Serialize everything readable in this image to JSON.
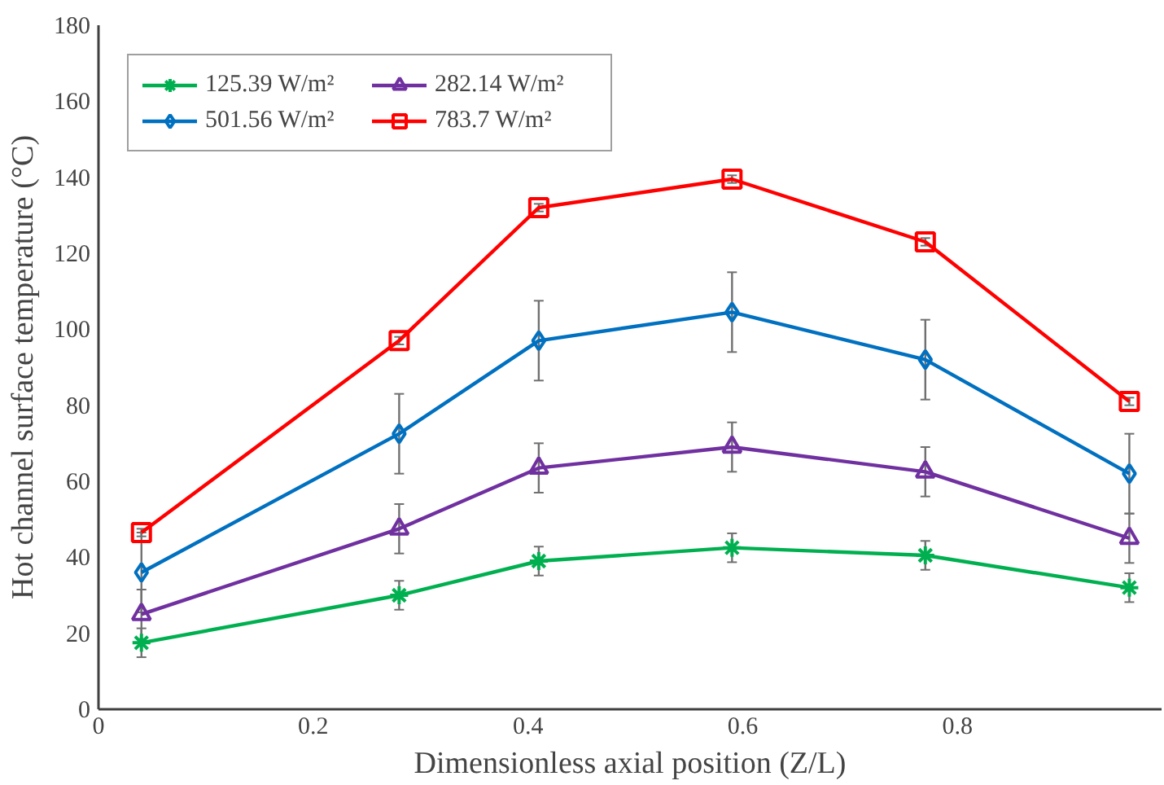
{
  "chart_data": {
    "type": "line",
    "xlabel": "Dimensionless axial position (Z/L)",
    "ylabel": "Hot channel surface temperature (°C)",
    "x": [
      0.04,
      0.28,
      0.41,
      0.59,
      0.77,
      0.96
    ],
    "xlim": [
      0,
      0.99
    ],
    "xticks": [
      0,
      0.2,
      0.4,
      0.6,
      0.8
    ],
    "ylim": [
      0,
      180
    ],
    "yticks": [
      0,
      20,
      40,
      60,
      80,
      100,
      120,
      140,
      160,
      180
    ],
    "grid": false,
    "legend": "top left",
    "line_style": "solid",
    "series": [
      {
        "name": "125.39 W/m²",
        "color": "#00b050",
        "marker": "cross",
        "values": [
          17.5,
          30,
          39,
          42.5,
          40.5,
          32
        ],
        "errors": [
          3.8,
          3.8,
          3.8,
          3.8,
          3.8,
          3.8
        ]
      },
      {
        "name": "282.14 W/m²",
        "color": "#7030a0",
        "marker": "triangle",
        "values": [
          25,
          47.5,
          63.5,
          69,
          62.5,
          45
        ],
        "errors": [
          6.5,
          6.5,
          6.5,
          6.5,
          6.5,
          6.5
        ]
      },
      {
        "name": "501.56 W/m²",
        "color": "#0070c0",
        "marker": "diamond",
        "values": [
          36,
          72.5,
          97,
          104.5,
          92,
          62
        ],
        "errors": [
          10.5,
          10.5,
          10.5,
          10.5,
          10.5,
          10.5
        ]
      },
      {
        "name": "783.7 W/m²",
        "color": "#ff0000",
        "marker": "square",
        "values": [
          46.5,
          97,
          132,
          139.5,
          123,
          81
        ],
        "errors": [
          1,
          1,
          1,
          1,
          1,
          1
        ]
      }
    ]
  }
}
